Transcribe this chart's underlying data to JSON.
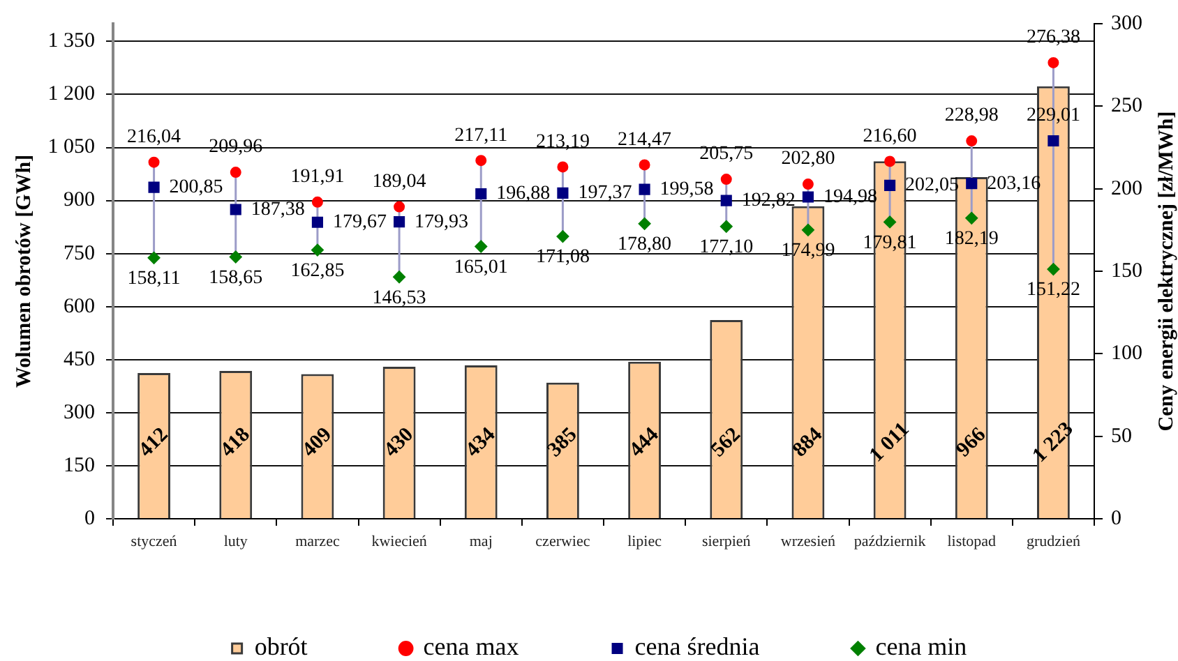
{
  "chart_data": {
    "type": "bar",
    "categories": [
      "styczeń",
      "luty",
      "marzec",
      "kwiecień",
      "maj",
      "czerwiec",
      "lipiec",
      "sierpień",
      "wrzesień",
      "październik",
      "listopad",
      "grudzień"
    ],
    "ylabel": "Wolumen obrotów [GWh]",
    "y2label": "Ceny energii elektrycznej [zł/MWh]",
    "ylim": [
      0,
      1400
    ],
    "yticks": [
      0,
      150,
      300,
      450,
      600,
      750,
      900,
      {
        "value": 1050,
        "label": "1 050"
      },
      {
        "value": 1200,
        "label": "1 200"
      },
      {
        "value": 1350,
        "label": "1 350"
      }
    ],
    "y2lim": [
      0,
      300
    ],
    "y2ticks": [
      0,
      50,
      100,
      150,
      200,
      250,
      300
    ],
    "grid": "y",
    "legend": "bottom",
    "series": [
      {
        "name": "obrót",
        "type": "bar",
        "color": "#ffcc99",
        "values": [
          412,
          418,
          409,
          430,
          434,
          385,
          444,
          562,
          884,
          1011,
          966,
          1223
        ],
        "value_labels": [
          "412",
          "418",
          "409",
          "430",
          "434",
          "385",
          "444",
          "562",
          "884",
          "1 011",
          "966",
          "1 223"
        ]
      },
      {
        "name": "cena max",
        "type": "scatter",
        "axis": "y2",
        "marker": "circle",
        "color": "#ff0000",
        "x": [
          "styczeń",
          "luty",
          "marzec",
          "kwiecień",
          "maj",
          "czerwiec",
          "lipiec",
          "sierpień",
          "wrzesień",
          "październik",
          "listopad",
          "grudzień"
        ],
        "values": [
          216.04,
          209.96,
          191.91,
          189.04,
          217.11,
          213.19,
          214.47,
          205.75,
          202.8,
          216.6,
          228.98,
          276.38
        ],
        "value_labels": [
          "216,04",
          "209,96",
          "191,91",
          "189,04",
          "217,11",
          "213,19",
          "214,47",
          "205,75",
          "202,80",
          "216,60",
          "228,98",
          "276,38"
        ]
      },
      {
        "name": "cena średnia",
        "type": "scatter",
        "axis": "y2",
        "marker": "square",
        "color": "#000080",
        "x": [
          "styczeń",
          "luty",
          "marzec",
          "kwiecień",
          "maj",
          "czerwiec",
          "lipiec",
          "sierpień",
          "wrzesień",
          "październik",
          "listopad",
          "grudzień"
        ],
        "values": [
          200.85,
          187.38,
          179.67,
          179.93,
          196.88,
          197.37,
          199.58,
          192.82,
          194.98,
          202.05,
          203.16,
          229.01
        ],
        "value_labels": [
          "200,85",
          "187,38",
          "179,67",
          "179,93",
          "196,88",
          "197,37",
          "199,58",
          "192,82",
          "194,98",
          "202,05",
          "203,16",
          "229,01"
        ]
      },
      {
        "name": "cena min",
        "type": "scatter",
        "axis": "y2",
        "marker": "diamond",
        "color": "#008000",
        "x": [
          "styczeń",
          "luty",
          "marzec",
          "kwiecień",
          "maj",
          "czerwiec",
          "lipiec",
          "sierpień",
          "wrzesień",
          "październik",
          "listopad",
          "grudzień"
        ],
        "values": [
          158.11,
          158.65,
          162.85,
          146.53,
          165.01,
          171.08,
          178.8,
          177.1,
          174.99,
          179.81,
          182.19,
          151.22
        ],
        "value_labels": [
          "158,11",
          "158,65",
          "162,85",
          "146,53",
          "165,01",
          "171,08",
          "178,80",
          "177,10",
          "174,99",
          "179,81",
          "182,19",
          "151,22"
        ]
      }
    ]
  }
}
